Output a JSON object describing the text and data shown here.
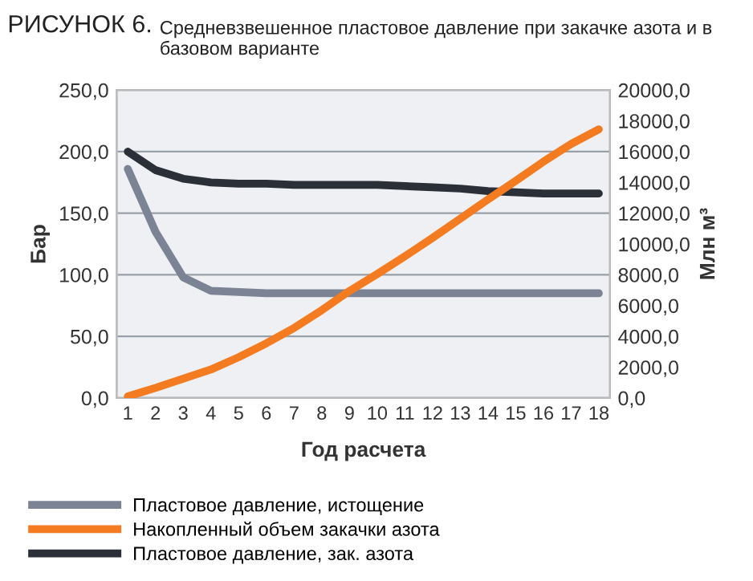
{
  "chart_data": {
    "type": "line",
    "title": "РИСУНОК 6.",
    "subtitle": "Средневзвешенное пластовое давление при закачке азота и в базовом варианте",
    "xlabel": "Год расчета",
    "ylabel": "Бар",
    "y2label": "Млн м³",
    "categories": [
      "1",
      "2",
      "3",
      "4",
      "5",
      "6",
      "7",
      "8",
      "9",
      "10",
      "11",
      "12",
      "13",
      "14",
      "15",
      "16",
      "17",
      "18"
    ],
    "series": [
      {
        "name": "Пластовое давление, истощение",
        "color": "#7c8394",
        "values": [
          186,
          135,
          98,
          87,
          86,
          85,
          85,
          85,
          85,
          85,
          85,
          85,
          85,
          85,
          85,
          85,
          85,
          85
        ]
      },
      {
        "name": "Накопленный объем закачки азота",
        "color": "#f47b20",
        "axis": "y2",
        "values": [
          100,
          650,
          1250,
          1850,
          2650,
          3550,
          4550,
          5700,
          6950,
          8050,
          9200,
          10400,
          11650,
          12900,
          14100,
          15350,
          16500,
          17450
        ]
      },
      {
        "name": "Пластовое давление, зак. азота",
        "color": "#2a2f38",
        "values": [
          200,
          185,
          178,
          175,
          174,
          174,
          173,
          173,
          173,
          173,
          172,
          171,
          170,
          168,
          167,
          166,
          166,
          166
        ]
      }
    ],
    "ylim": [
      0,
      250
    ],
    "yticks": [
      {
        "value": 0,
        "label": "0,0"
      },
      {
        "value": 50,
        "label": "50,0"
      },
      {
        "value": 100,
        "label": "100,0"
      },
      {
        "value": 150,
        "label": "150,0"
      },
      {
        "value": 200,
        "label": "200,0"
      },
      {
        "value": 250,
        "label": "250,0"
      }
    ],
    "y2lim": [
      0,
      20000
    ],
    "y2ticks": [
      {
        "value": 0,
        "label": "0,0"
      },
      {
        "value": 2000,
        "label": "2000,0"
      },
      {
        "value": 4000,
        "label": "4000,0"
      },
      {
        "value": 6000,
        "label": "6000,0"
      },
      {
        "value": 8000,
        "label": "8000,0"
      },
      {
        "value": 10000,
        "label": "10000,0"
      },
      {
        "value": 12000,
        "label": "12000,0"
      },
      {
        "value": 14000,
        "label": "14000,0"
      },
      {
        "value": 16000,
        "label": "16000,0"
      },
      {
        "value": 18000,
        "label": "18000,0"
      },
      {
        "value": 20000,
        "label": "20000,0"
      }
    ],
    "grid": "y",
    "legend": "bottom",
    "marker": "none",
    "line_style": "solid"
  }
}
